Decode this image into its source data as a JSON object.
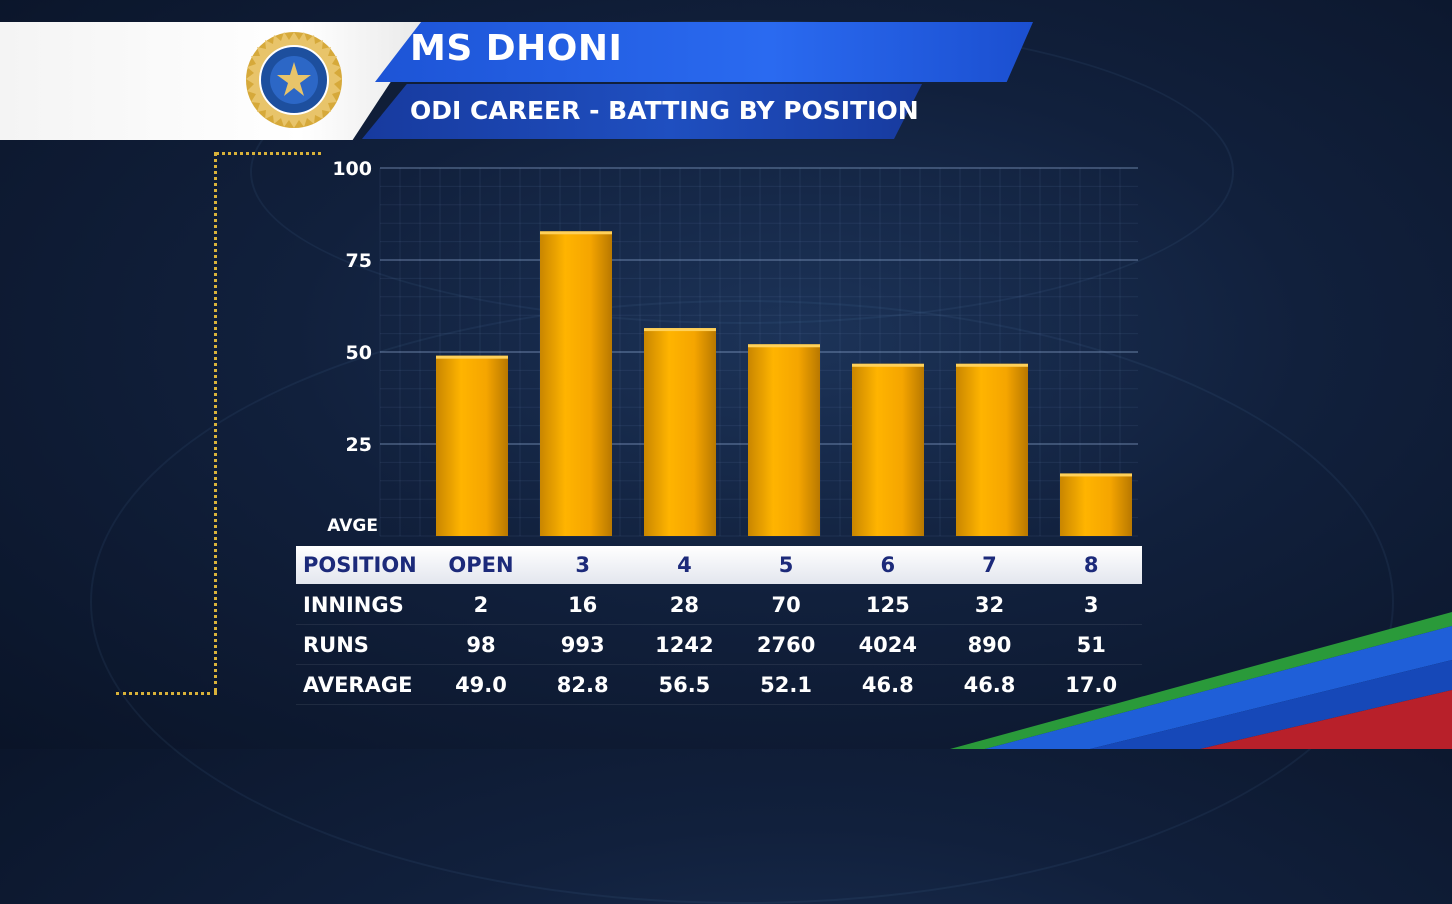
{
  "header": {
    "title": "MS DHONI",
    "subtitle": "ODI CAREER - BATTING BY POSITION"
  },
  "colors": {
    "bar": "#f2a800",
    "title_band": "#2a6af0",
    "header_text": "#1c2a7a",
    "accent_dots": "#d9b23a"
  },
  "icons": {
    "logo": "bcci-crest-icon"
  },
  "chart_data": {
    "type": "bar",
    "y_axis_label": "AVGE",
    "ylim": [
      0,
      100
    ],
    "yticks": [
      25,
      50,
      75,
      100
    ],
    "grid": true,
    "categories": [
      "OPEN",
      "3",
      "4",
      "5",
      "6",
      "7",
      "8"
    ],
    "values": [
      49.0,
      82.8,
      56.5,
      52.1,
      46.8,
      46.8,
      17.0
    ]
  },
  "table": {
    "header_label": "POSITION",
    "positions": [
      "OPEN",
      "3",
      "4",
      "5",
      "6",
      "7",
      "8"
    ],
    "rows": [
      {
        "label": "INNINGS",
        "values": [
          "2",
          "16",
          "28",
          "70",
          "125",
          "32",
          "3"
        ]
      },
      {
        "label": "RUNS",
        "values": [
          "98",
          "993",
          "1242",
          "2760",
          "4024",
          "890",
          "51"
        ]
      },
      {
        "label": "AVERAGE",
        "values": [
          "49.0",
          "82.8",
          "56.5",
          "52.1",
          "46.8",
          "46.8",
          "17.0"
        ]
      }
    ]
  }
}
